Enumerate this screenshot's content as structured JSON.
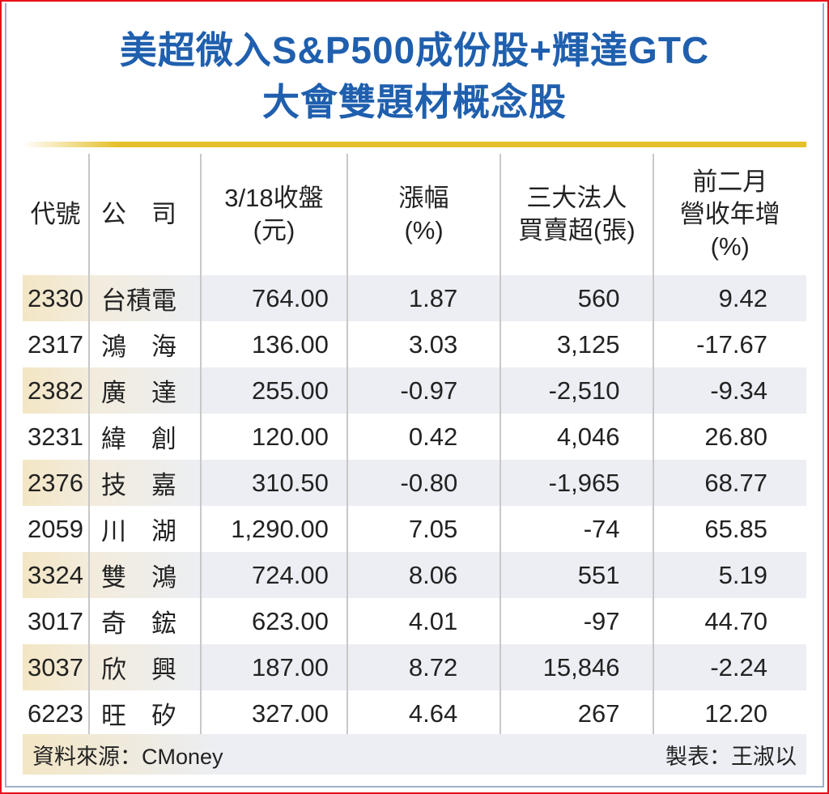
{
  "title": {
    "line1": "美超微入S&P500成份股+輝達GTC",
    "line2": "大會雙題材概念股"
  },
  "table": {
    "headers": {
      "code": "代號",
      "company": "公　司",
      "close": [
        "3/18收盤",
        "(元)"
      ],
      "change": [
        "漲幅",
        "(%)"
      ],
      "institutional": [
        "三大法人",
        "買賣超(張)"
      ],
      "revenue": [
        "前二月",
        "營收年增",
        "(%)"
      ]
    },
    "rows": [
      {
        "code": "2330",
        "company": "台積電",
        "close": "764.00",
        "change": "1.87",
        "institutional": "560",
        "revenue": "9.42"
      },
      {
        "code": "2317",
        "company": "鴻　海",
        "close": "136.00",
        "change": "3.03",
        "institutional": "3,125",
        "revenue": "-17.67"
      },
      {
        "code": "2382",
        "company": "廣　達",
        "close": "255.00",
        "change": "-0.97",
        "institutional": "-2,510",
        "revenue": "-9.34"
      },
      {
        "code": "3231",
        "company": "緯　創",
        "close": "120.00",
        "change": "0.42",
        "institutional": "4,046",
        "revenue": "26.80"
      },
      {
        "code": "2376",
        "company": "技　嘉",
        "close": "310.50",
        "change": "-0.80",
        "institutional": "-1,965",
        "revenue": "68.77"
      },
      {
        "code": "2059",
        "company": "川　湖",
        "close": "1,290.00",
        "change": "7.05",
        "institutional": "-74",
        "revenue": "65.85"
      },
      {
        "code": "3324",
        "company": "雙　鴻",
        "close": "724.00",
        "change": "8.06",
        "institutional": "551",
        "revenue": "5.19"
      },
      {
        "code": "3017",
        "company": "奇　鋐",
        "close": "623.00",
        "change": "4.01",
        "institutional": "-97",
        "revenue": "44.70"
      },
      {
        "code": "3037",
        "company": "欣　興",
        "close": "187.00",
        "change": "8.72",
        "institutional": "15,846",
        "revenue": "-2.24"
      },
      {
        "code": "6223",
        "company": "旺　矽",
        "close": "327.00",
        "change": "4.64",
        "institutional": "267",
        "revenue": "12.20"
      }
    ]
  },
  "footer": {
    "source": "資料來源：CMoney",
    "credit": "製表：王淑以"
  }
}
